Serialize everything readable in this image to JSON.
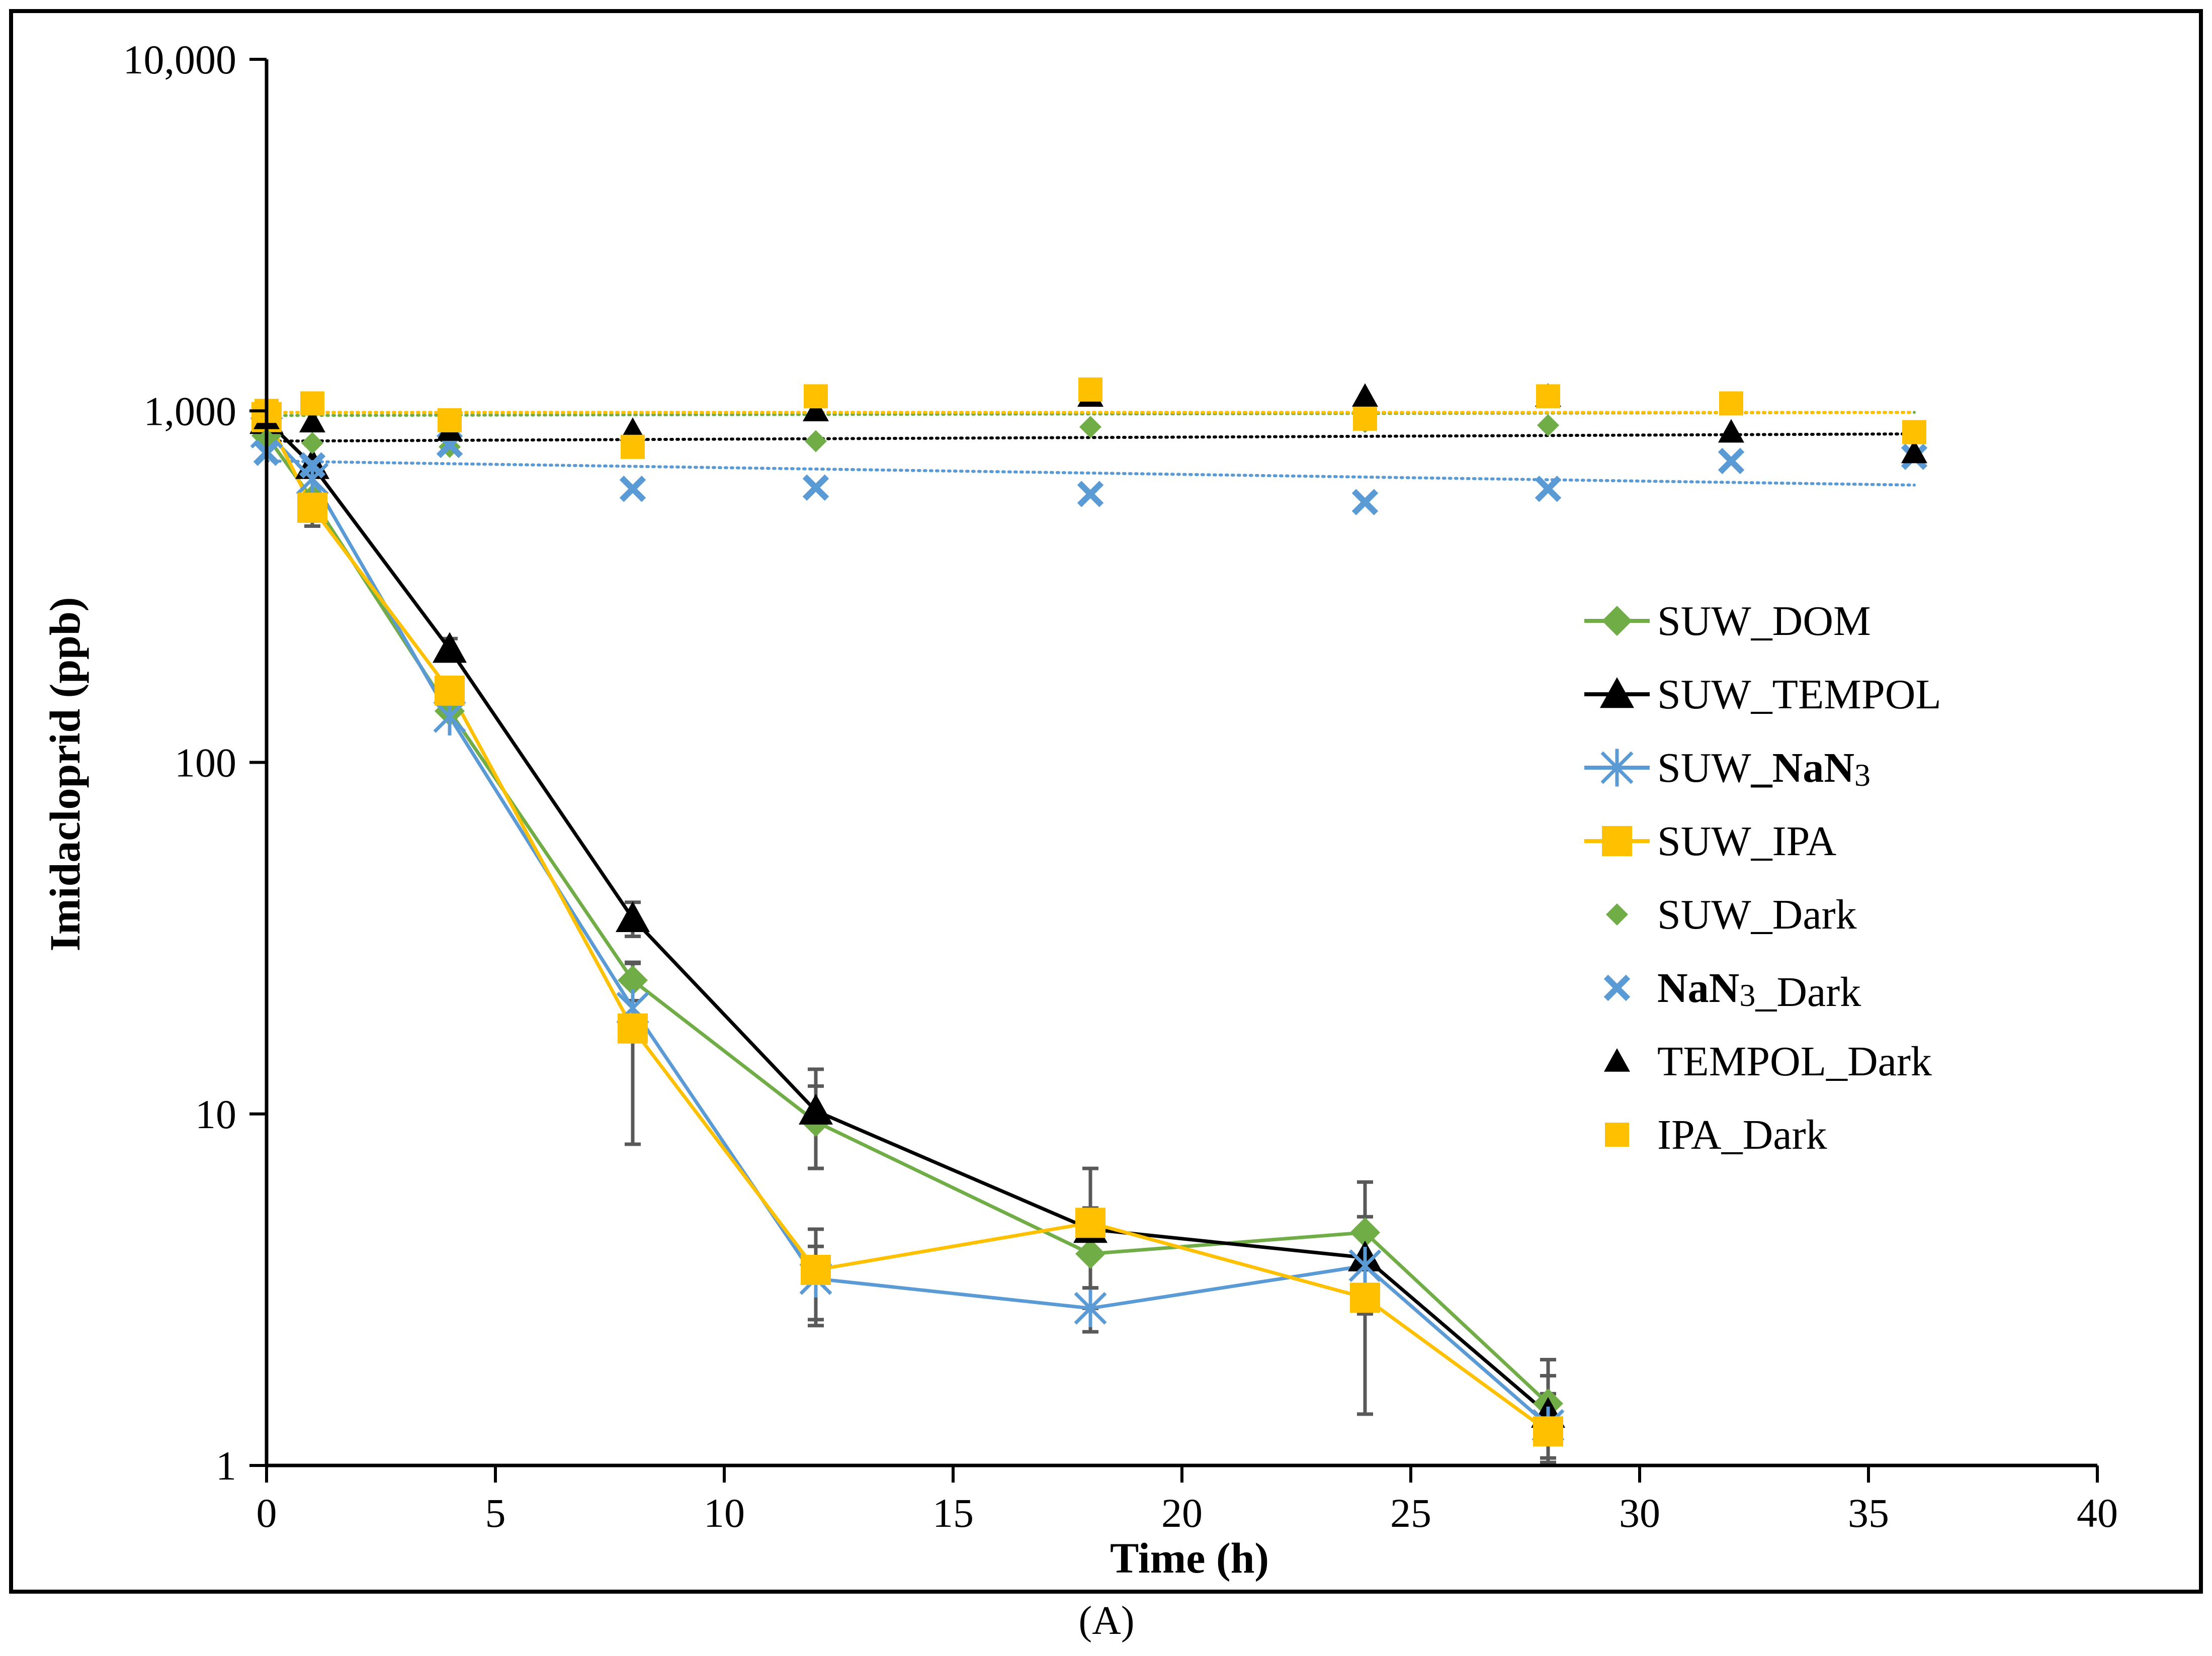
{
  "chart_data": {
    "type": "line",
    "panel_label": "(A)",
    "xlabel": "Time (h)",
    "ylabel": "Imidacloprid (ppb)",
    "xlim": [
      0,
      40
    ],
    "ylim": [
      1,
      10000
    ],
    "yscale": "log",
    "xticks": [
      "0",
      "5",
      "10",
      "15",
      "20",
      "25",
      "30",
      "35",
      "40"
    ],
    "yticks": [
      "1",
      "10",
      "100",
      "1,000",
      "10,000"
    ],
    "grid": false,
    "legend_position": "right",
    "series": [
      {
        "name": "SUW_DOM",
        "label_parts": [
          "SUW",
          "_DOM"
        ],
        "color": "#70ad47",
        "marker": "diamond",
        "line": "solid",
        "x": [
          0,
          1,
          4,
          8,
          12,
          18,
          24,
          28
        ],
        "y": [
          850,
          560,
          140,
          24,
          9.5,
          4.0,
          4.6,
          1.5
        ],
        "err": [
          0,
          0,
          0,
          3,
          2.5,
          0.8,
          1.8,
          0.5
        ]
      },
      {
        "name": "SUW_TEMPOL",
        "label_parts": [
          "SUW",
          "_TEMPOL"
        ],
        "color": "#000000",
        "marker": "triangle",
        "line": "solid",
        "x": [
          0,
          1,
          4,
          8,
          12,
          18,
          24,
          28
        ],
        "y": [
          940,
          700,
          210,
          36,
          10.2,
          4.7,
          3.9,
          1.4
        ],
        "err": [
          0,
          0,
          15,
          4,
          3.2,
          0.7,
          1.2,
          0.4
        ]
      },
      {
        "name": "SUW_NaN3",
        "label_parts": [
          "SUW",
          "_NaN",
          "3"
        ],
        "color": "#5b9bd5",
        "marker": "star",
        "line": "solid",
        "x": [
          0,
          1,
          4,
          8,
          12,
          18,
          24,
          28
        ],
        "y": [
          870,
          640,
          135,
          20,
          3.4,
          2.8,
          3.7,
          1.3
        ],
        "err": [
          0,
          0,
          0,
          0,
          0.8,
          0.4,
          1.0,
          0.3
        ]
      },
      {
        "name": "SUW_IPA",
        "label_parts": [
          "SUW",
          "_IPA"
        ],
        "color": "#ffc000",
        "marker": "square",
        "line": "solid",
        "x": [
          0,
          1,
          4,
          8,
          12,
          18,
          24,
          28
        ],
        "y": [
          960,
          530,
          160,
          17.5,
          3.6,
          4.9,
          3.0,
          1.25
        ],
        "err": [
          0,
          60,
          0,
          9.3,
          1.1,
          2.1,
          1.6,
          0.2
        ]
      },
      {
        "name": "SUW_Dark",
        "label_parts": [
          "SUW",
          "_Dark"
        ],
        "color": "#70ad47",
        "marker": "diamond-small",
        "line": "none",
        "x": [
          0,
          1,
          4,
          12,
          18,
          24,
          28
        ],
        "y": [
          830,
          810,
          790,
          820,
          900,
          930,
          910
        ],
        "trend": [
          970,
          990
        ]
      },
      {
        "name": "NaN3_Dark",
        "label_parts": [
          "NaN",
          "3",
          "_Dark"
        ],
        "color": "#5b9bd5",
        "marker": "x",
        "line": "none",
        "x": [
          0,
          1,
          4,
          8,
          12,
          18,
          24,
          28,
          32,
          36
        ],
        "y": [
          760,
          700,
          800,
          600,
          605,
          580,
          550,
          600,
          720,
          740
        ],
        "trend": [
          720,
          615
        ]
      },
      {
        "name": "TEMPOL_Dark",
        "label_parts": [
          "TEMPOL",
          "_Dark"
        ],
        "color": "#000000",
        "marker": "triangle-small",
        "line": "none",
        "x": [
          0,
          1,
          4,
          8,
          12,
          18,
          24,
          28,
          32,
          36
        ],
        "y": [
          950,
          930,
          880,
          880,
          1000,
          1100,
          1100,
          1100,
          870,
          760
        ],
        "trend": [
          820,
          860
        ]
      },
      {
        "name": "IPA_Dark",
        "label_parts": [
          "IPA",
          "_Dark"
        ],
        "color": "#ffc000",
        "marker": "square-small",
        "line": "none",
        "x": [
          0,
          1,
          4,
          8,
          12,
          18,
          24,
          28,
          32,
          36
        ],
        "y": [
          1000,
          1050,
          940,
          790,
          1100,
          1150,
          950,
          1100,
          1050,
          870
        ],
        "trend": [
          990,
          990
        ]
      }
    ]
  }
}
